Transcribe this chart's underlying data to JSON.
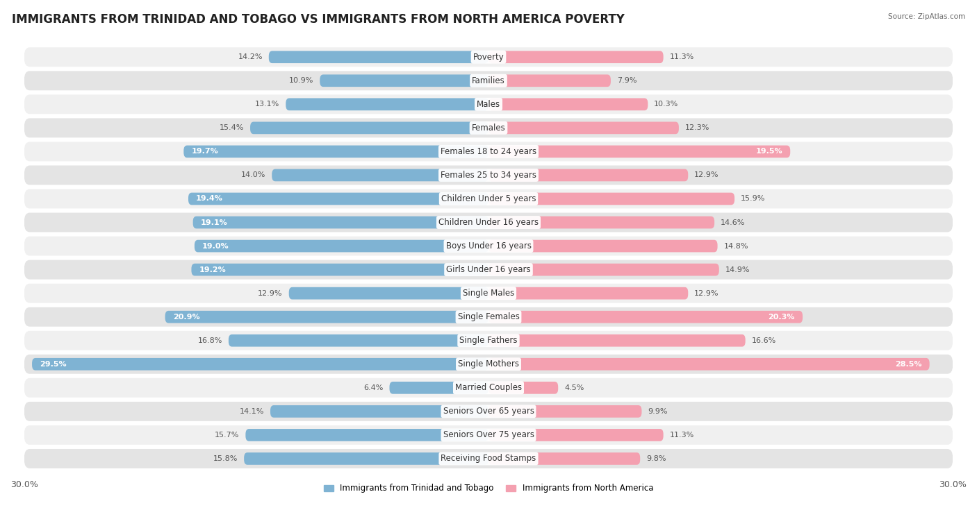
{
  "title": "IMMIGRANTS FROM TRINIDAD AND TOBAGO VS IMMIGRANTS FROM NORTH AMERICA POVERTY",
  "source": "Source: ZipAtlas.com",
  "categories": [
    "Poverty",
    "Families",
    "Males",
    "Females",
    "Females 18 to 24 years",
    "Females 25 to 34 years",
    "Children Under 5 years",
    "Children Under 16 years",
    "Boys Under 16 years",
    "Girls Under 16 years",
    "Single Males",
    "Single Females",
    "Single Fathers",
    "Single Mothers",
    "Married Couples",
    "Seniors Over 65 years",
    "Seniors Over 75 years",
    "Receiving Food Stamps"
  ],
  "left_values": [
    14.2,
    10.9,
    13.1,
    15.4,
    19.7,
    14.0,
    19.4,
    19.1,
    19.0,
    19.2,
    12.9,
    20.9,
    16.8,
    29.5,
    6.4,
    14.1,
    15.7,
    15.8
  ],
  "right_values": [
    11.3,
    7.9,
    10.3,
    12.3,
    19.5,
    12.9,
    15.9,
    14.6,
    14.8,
    14.9,
    12.9,
    20.3,
    16.6,
    28.5,
    4.5,
    9.9,
    11.3,
    9.8
  ],
  "left_color": "#7fb3d3",
  "right_color": "#f4a0b0",
  "left_label": "Immigrants from Trinidad and Tobago",
  "right_label": "Immigrants from North America",
  "max_val": 30.0,
  "row_bg_odd": "#f0f0f0",
  "row_bg_even": "#e4e4e4",
  "title_fontsize": 12,
  "cat_fontsize": 8.5,
  "value_fontsize": 8,
  "axis_fontsize": 9
}
